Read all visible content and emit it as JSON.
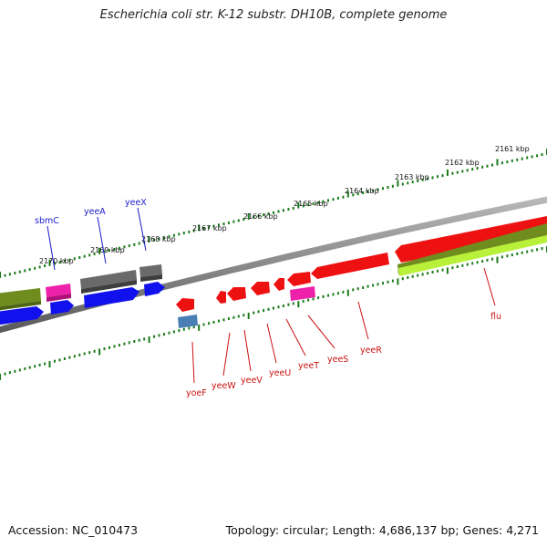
{
  "title": "Escherichia coli str. K-12 substr. DH10B, complete genome",
  "footer": {
    "accession": "Accession: NC_010473",
    "summary": "Topology: circular; Length: 4,686,137 bp; Genes: 4,271"
  },
  "colors": {
    "ruler_tick": "#1a7a1a",
    "backbone": "#8a8a8a",
    "forward_label": "#1a1acc",
    "reverse_label": "#cc1111",
    "feature_red": "#ee1111",
    "feature_blue": "#1111ee",
    "feature_gray": "#666666",
    "feature_magenta": "#ee22aa",
    "feature_olive": "#6f8c1f",
    "feature_lime": "#b8f03a",
    "feature_steel": "#4a7fb5"
  },
  "kbp_labels": [
    {
      "text": "2161 kbp"
    },
    {
      "text": "2162 kbp"
    },
    {
      "text": "2163 kbp"
    },
    {
      "text": "2164 kbp"
    },
    {
      "text": "2165 kbp"
    },
    {
      "text": "2166 kbp"
    },
    {
      "text": "2167 kbp"
    },
    {
      "text": "2168 kbp"
    },
    {
      "text": "2169 kbp"
    },
    {
      "text": "2170 kbp"
    }
  ],
  "gene_labels": {
    "forward": [
      "sbmC",
      "yeeA",
      "yeeX"
    ],
    "reverse": [
      "yoeF",
      "yeeW",
      "yeeV",
      "yeeU",
      "yeeT",
      "yeeS",
      "yeeR",
      "flu"
    ]
  }
}
